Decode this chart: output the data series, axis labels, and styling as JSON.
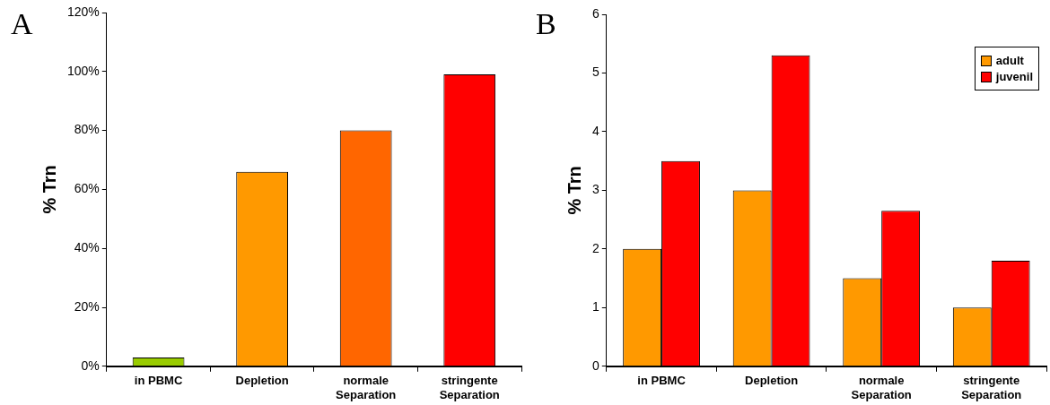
{
  "chart_data": [
    {
      "type": "bar",
      "annotations": [
        "A"
      ],
      "ylabel": "% Trn",
      "categories": [
        "in PBMC",
        "Depletion",
        "normale Separation",
        "stringente Separation"
      ],
      "values": [
        3,
        66,
        80,
        99
      ],
      "colors": [
        "#99cc00",
        "#ff9900",
        "#ff6600",
        "#ff0000"
      ],
      "ylim": [
        0,
        120
      ],
      "yticks": [
        {
          "value": 0,
          "label": "0%"
        },
        {
          "value": 20,
          "label": "20%"
        },
        {
          "value": 40,
          "label": "40%"
        },
        {
          "value": 60,
          "label": "60%"
        },
        {
          "value": 80,
          "label": "80%"
        },
        {
          "value": 100,
          "label": "100%"
        },
        {
          "value": 120,
          "label": "120%"
        }
      ],
      "grid": false,
      "legend": false
    },
    {
      "type": "bar",
      "annotations": [
        "B"
      ],
      "ylabel": "% Trn",
      "categories": [
        "in PBMC",
        "Depletion",
        "normale Separation",
        "stringente Separation"
      ],
      "series": [
        {
          "name": "adult",
          "color": "#ff9900",
          "values": [
            2,
            3,
            1.5,
            1
          ]
        },
        {
          "name": "juvenil",
          "color": "#ff0000",
          "values": [
            3.5,
            5.3,
            2.65,
            1.8
          ]
        }
      ],
      "ylim": [
        0,
        6
      ],
      "yticks": [
        0,
        1,
        2,
        3,
        4,
        5,
        6
      ],
      "grid": false,
      "legend": "top right"
    }
  ]
}
